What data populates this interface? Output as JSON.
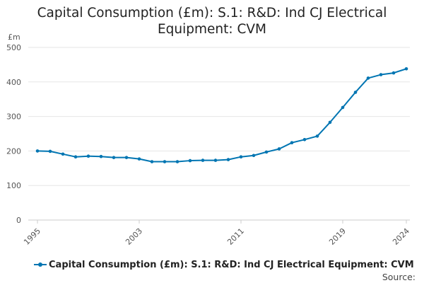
{
  "chart_data": {
    "type": "line",
    "title": "Capital Consumption (£m): S.1: R&D: Ind CJ Electrical Equipment: CVM",
    "unit_label": "£m",
    "x": [
      1995,
      1996,
      1997,
      1998,
      1999,
      2000,
      2001,
      2002,
      2003,
      2004,
      2005,
      2006,
      2007,
      2008,
      2009,
      2010,
      2011,
      2012,
      2013,
      2014,
      2015,
      2016,
      2017,
      2018,
      2019,
      2020,
      2021,
      2022,
      2023,
      2024
    ],
    "series": [
      {
        "name": "Capital Consumption (£m): S.1: R&D: Ind CJ Electrical Equipment: CVM",
        "color": "#0075b2",
        "values": [
          200,
          199,
          191,
          183,
          185,
          184,
          181,
          181,
          177,
          169,
          169,
          169,
          172,
          173,
          173,
          175,
          183,
          187,
          197,
          206,
          224,
          233,
          243,
          283,
          326,
          370,
          411,
          421,
          426,
          438
        ]
      }
    ],
    "xticks": [
      1995,
      2003,
      2011,
      2019,
      2024
    ],
    "yticks": [
      0,
      100,
      200,
      300,
      400,
      500
    ],
    "ylim": [
      0,
      500
    ],
    "xlim": [
      1995,
      2024
    ],
    "grid": true,
    "legend": "bottom"
  },
  "footer": {
    "source_label": "Source:"
  }
}
